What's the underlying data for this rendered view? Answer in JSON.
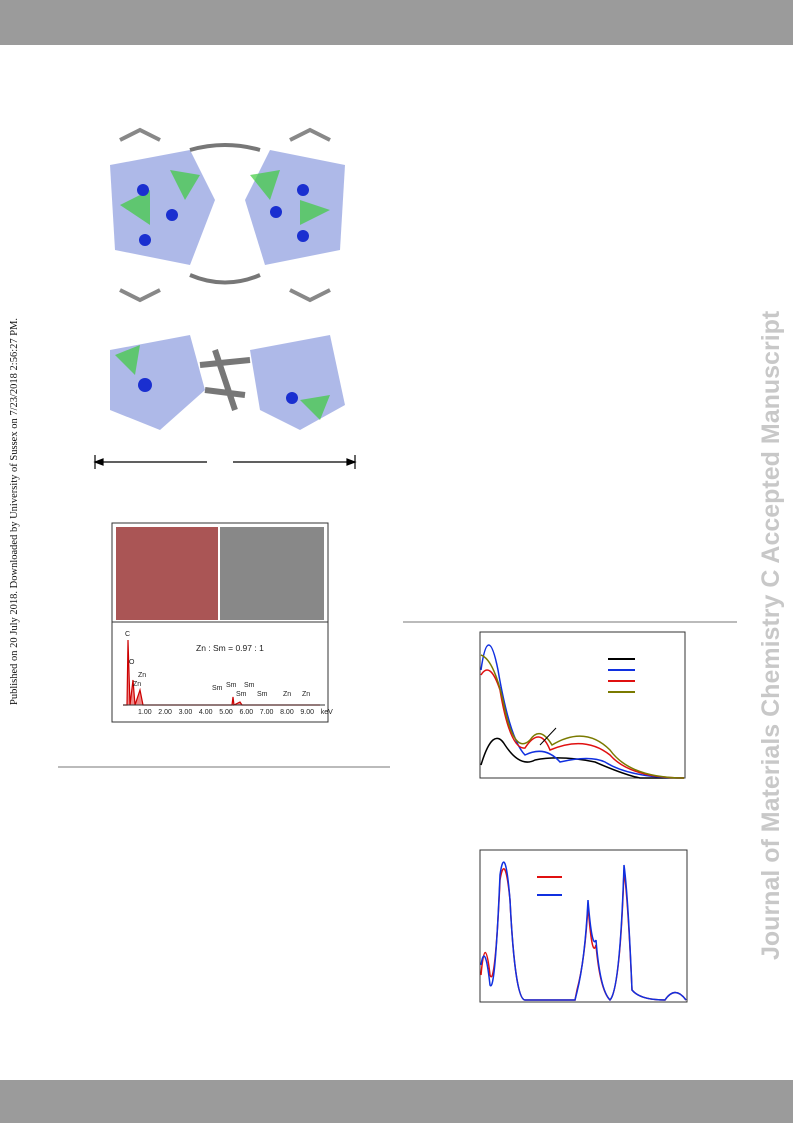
{
  "side_note": "Published on 20 July 2018. Downloaded by University of Sussex on 7/23/2018 2:56:27 PM.",
  "watermark": "Journal of Materials Chemistry C Accepted Manuscript",
  "eds": {
    "ratio": "Zn : Sm = 0.97 : 1",
    "peaks": [
      {
        "label": "C"
      },
      {
        "label": "O"
      },
      {
        "label": "Zn"
      },
      {
        "label": "Zn"
      },
      {
        "label": "Sm"
      },
      {
        "label": "Sm"
      },
      {
        "label": "Sm"
      },
      {
        "label": "Sm"
      },
      {
        "label": "Sm"
      },
      {
        "label": "Zn"
      },
      {
        "label": "Zn"
      }
    ],
    "axis": [
      "1.00",
      "2.00",
      "3.00",
      "4.00",
      "5.00",
      "6.00",
      "7.00",
      "8.00",
      "9.00",
      "keV"
    ]
  }
}
